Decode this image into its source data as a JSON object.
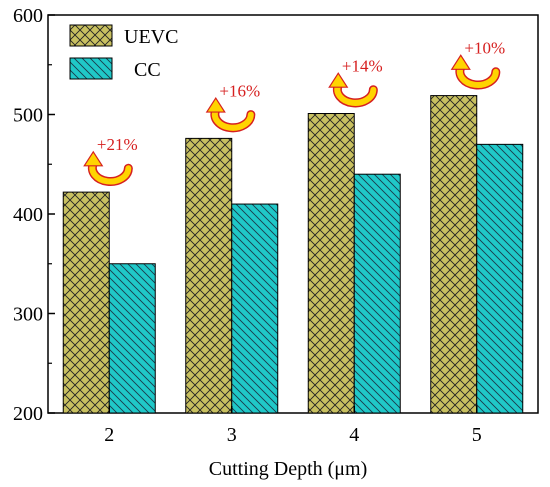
{
  "chart_data": {
    "type": "bar",
    "categories": [
      "2",
      "3",
      "4",
      "5"
    ],
    "series": [
      {
        "name": "UEVC",
        "values": [
          422,
          476,
          501,
          519
        ],
        "color": "#c8c060",
        "hatch": "crosshatch"
      },
      {
        "name": "CC",
        "values": [
          350,
          410,
          440,
          470
        ],
        "color": "#20c8c8",
        "hatch": "diagonal"
      }
    ],
    "xlabel": "Cutting Depth (μm)",
    "ylabel": "",
    "ylim": [
      200,
      600
    ],
    "yticks": [
      "200",
      "300",
      "400",
      "500",
      "600"
    ],
    "legend_position": "top-left",
    "annotations": [
      "+21%",
      "+16%",
      "+14%",
      "+10%"
    ],
    "annotation_color": "#d62020",
    "arrow_color": "#ffd400"
  }
}
